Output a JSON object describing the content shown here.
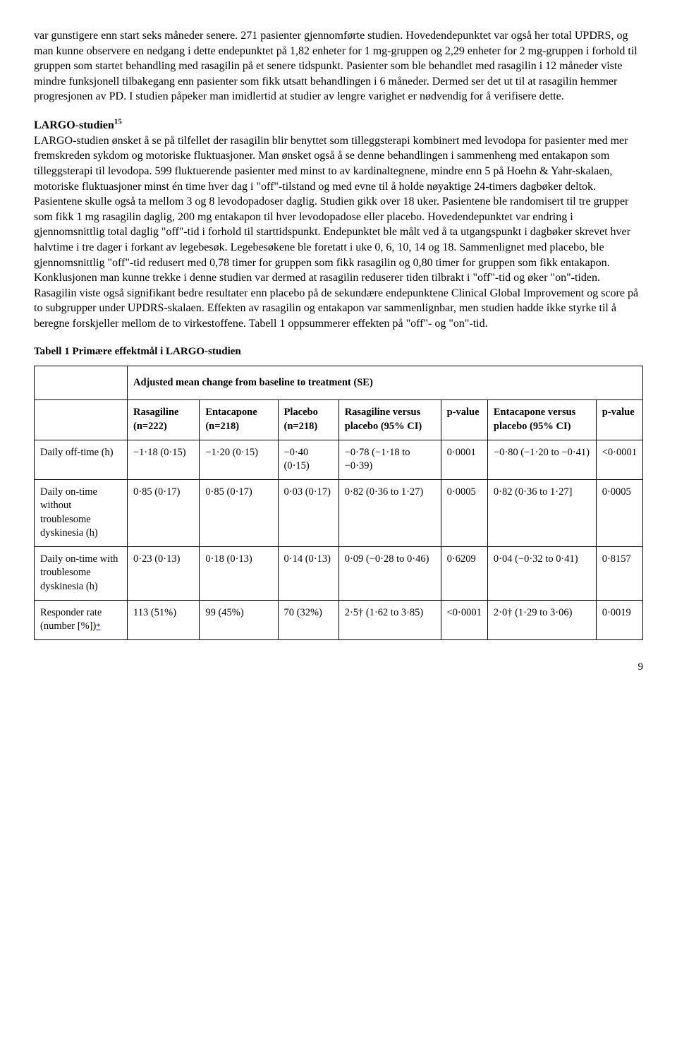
{
  "paragraph1": "var gunstigere enn start seks måneder senere. 271 pasienter gjennomførte studien. Hovedendepunktet var også her total UPDRS, og man kunne observere en nedgang i dette endepunktet på 1,82 enheter for 1 mg-gruppen og 2,29 enheter for 2 mg-gruppen i forhold til gruppen som startet behandling med rasagilin på et senere tidspunkt. Pasienter som ble behandlet med rasagilin i 12 måneder viste mindre funksjonell tilbakegang enn pasienter som fikk utsatt behandlingen i 6 måneder. Dermed ser det ut til at rasagilin hemmer progresjonen av PD. I studien påpeker man imidlertid at studier av lengre varighet er nødvendig for å verifisere dette.",
  "section_heading_bold": "LARGO-studien",
  "section_heading_sup": "15",
  "paragraph2": "LARGO-studien ønsket å se på tilfellet der rasagilin blir benyttet som tilleggsterapi kombinert med levodopa for pasienter med mer fremskreden sykdom og motoriske fluktuasjoner. Man ønsket også å se denne behandlingen i sammenheng med entakapon som tilleggsterapi til levodopa. 599 fluktuerende pasienter med minst to av kardinaltegnene, mindre enn 5 på Hoehn & Yahr-skalaen, motoriske fluktuasjoner minst én time hver dag i \"off\"-tilstand og med evne til å holde nøyaktige 24-timers dagbøker deltok. Pasientene skulle også ta mellom 3 og 8 levodopadoser daglig. Studien gikk over 18 uker. Pasientene ble randomisert til tre grupper som fikk 1 mg rasagilin daglig, 200 mg entakapon til hver levodopadose eller placebo. Hovedendepunktet var endring i gjennomsnittlig total daglig \"off\"-tid i forhold til starttidspunkt. Endepunktet ble målt ved å ta utgangspunkt i dagbøker skrevet hver halvtime i tre dager i forkant av legebesøk. Legebesøkene ble foretatt i uke 0, 6, 10, 14 og 18. Sammenlignet med placebo, ble gjennomsnittlig \"off\"-tid redusert med 0,78 timer for gruppen som fikk rasagilin og 0,80 timer for gruppen som fikk entakapon. Konklusjonen man kunne trekke i denne studien var dermed at rasagilin reduserer tiden tilbrakt i \"off\"-tid og øker \"on\"-tiden. Rasagilin viste også signifikant bedre resultater enn placebo på de sekundære endepunktene Clinical Global Improvement og score på to subgrupper under UPDRS-skalaen. Effekten av rasagilin og entakapon var sammenlignbar, men studien hadde ikke styrke til å beregne forskjeller mellom de to virkestoffene. Tabell 1 oppsummerer effekten på \"off\"- og \"on\"-tid.",
  "table_caption": "Tabell 1 Primære effektmål i LARGO-studien",
  "spanner": "Adjusted mean change from baseline to treatment (SE)",
  "headers": {
    "c1": "Rasagiline (n=222)",
    "c2": "Entacapone (n=218)",
    "c3": "Placebo (n=218)",
    "c4": "Rasagiline versus placebo (95% CI)",
    "c5": "p-value",
    "c6": "Entacapone versus placebo (95% CI)",
    "c7": "p-value"
  },
  "rows": [
    {
      "label": "Daily off-time (h)",
      "c1": "−1·18 (0·15)",
      "c2": "−1·20 (0·15)",
      "c3": "−0·40 (0·15)",
      "c4": "−0·78 (−1·18 to −0·39)",
      "c5": "0·0001",
      "c6": "−0·80 (−1·20 to −0·41)",
      "c7": "<0·0001"
    },
    {
      "label": "Daily on-time without troublesome dyskinesia (h)",
      "c1": "0·85 (0·17)",
      "c2": "0·85 (0·17)",
      "c3": "0·03 (0·17)",
      "c4": "0·82 (0·36 to 1·27)",
      "c5": "0·0005",
      "c6": "0·82 (0·36 to 1·27]",
      "c7": "0·0005"
    },
    {
      "label": "Daily on-time with troublesome dyskinesia (h)",
      "c1": "0·23 (0·13)",
      "c2": "0·18 (0·13)",
      "c3": "0·14 (0·13)",
      "c4": "0·09 (−0·28 to 0·46)",
      "c5": "0·6209",
      "c6": "0·04 (−0·32 to 0·41)",
      "c7": "0·8157"
    },
    {
      "label_pre": "Responder rate (number [%])",
      "label_star": "*",
      "c1": "113 (51%)",
      "c2": "99 (45%)",
      "c3": "70 (32%)",
      "c4": "2·5† (1·62 to 3·85)",
      "c5": "<0·0001",
      "c6": "2·0† (1·29 to 3·06)",
      "c7": "0·0019"
    }
  ],
  "page_number": "9"
}
